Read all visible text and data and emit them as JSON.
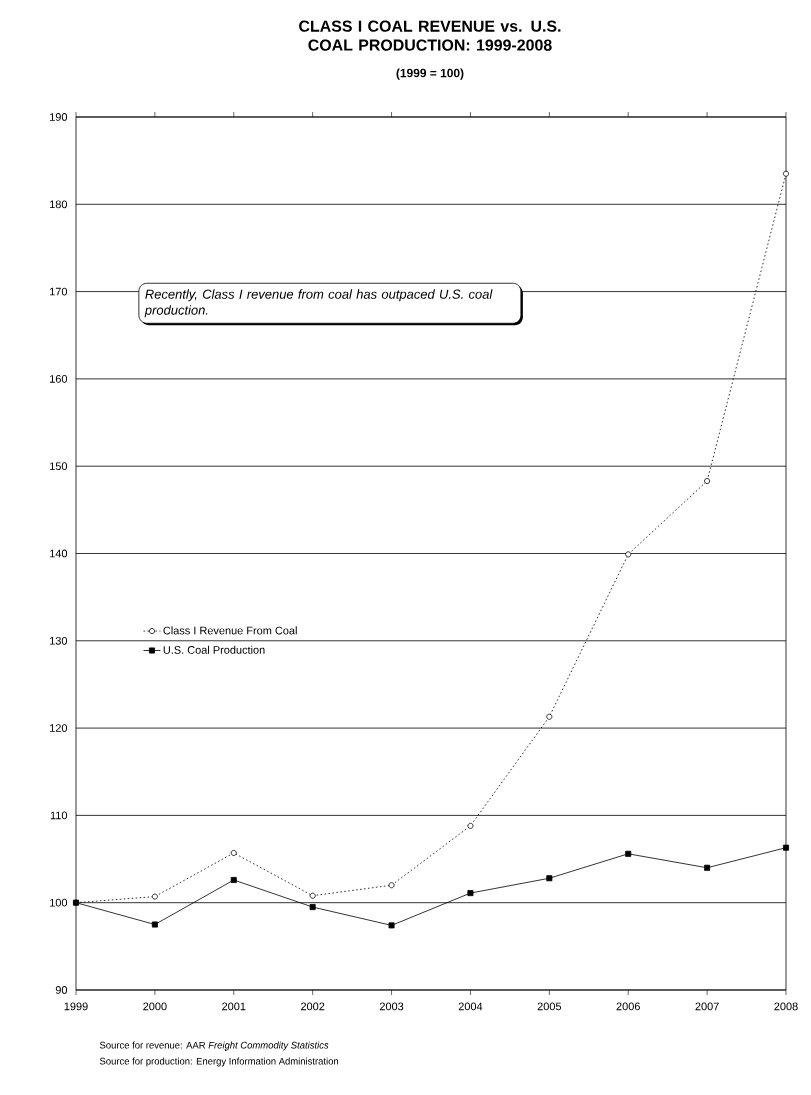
{
  "chart_data": {
    "type": "line",
    "title": "CLASS I COAL REVENUE vs. U.S. COAL PRODUCTION: 1999-2008",
    "subtitle": "(1999 = 100)",
    "x": [
      1999,
      2000,
      2001,
      2002,
      2003,
      2004,
      2005,
      2006,
      2007,
      2008
    ],
    "series": [
      {
        "name": "Class I Revenue From Coal",
        "color": "#000000",
        "marker": "circle",
        "line_style": "dotted",
        "values": [
          100,
          100.7,
          105.7,
          100.8,
          102.0,
          108.8,
          121.3,
          139.9,
          148.3,
          183.5
        ]
      },
      {
        "name": "U.S. Coal Production",
        "color": "#000000",
        "marker": "square",
        "line_style": "solid",
        "values": [
          100,
          97.5,
          102.6,
          99.5,
          97.4,
          101.1,
          102.8,
          105.6,
          104.0,
          106.3
        ]
      }
    ],
    "xlim": [
      1999,
      2008
    ],
    "xticks": [
      1999,
      2000,
      2001,
      2002,
      2003,
      2004,
      2005,
      2006,
      2007,
      2008
    ],
    "ylim": [
      90,
      190
    ],
    "yticks": [
      90,
      100,
      110,
      120,
      130,
      140,
      150,
      160,
      170,
      180,
      190
    ],
    "grid": "y",
    "legend": "center left",
    "annotations": [
      "Recently, Class I revenue from coal has outpaced U.S. coal production.",
      "Source for revenue:  AAR *Freight Commodity Statistics*",
      "Source for production:  Energy Information Administration"
    ]
  }
}
